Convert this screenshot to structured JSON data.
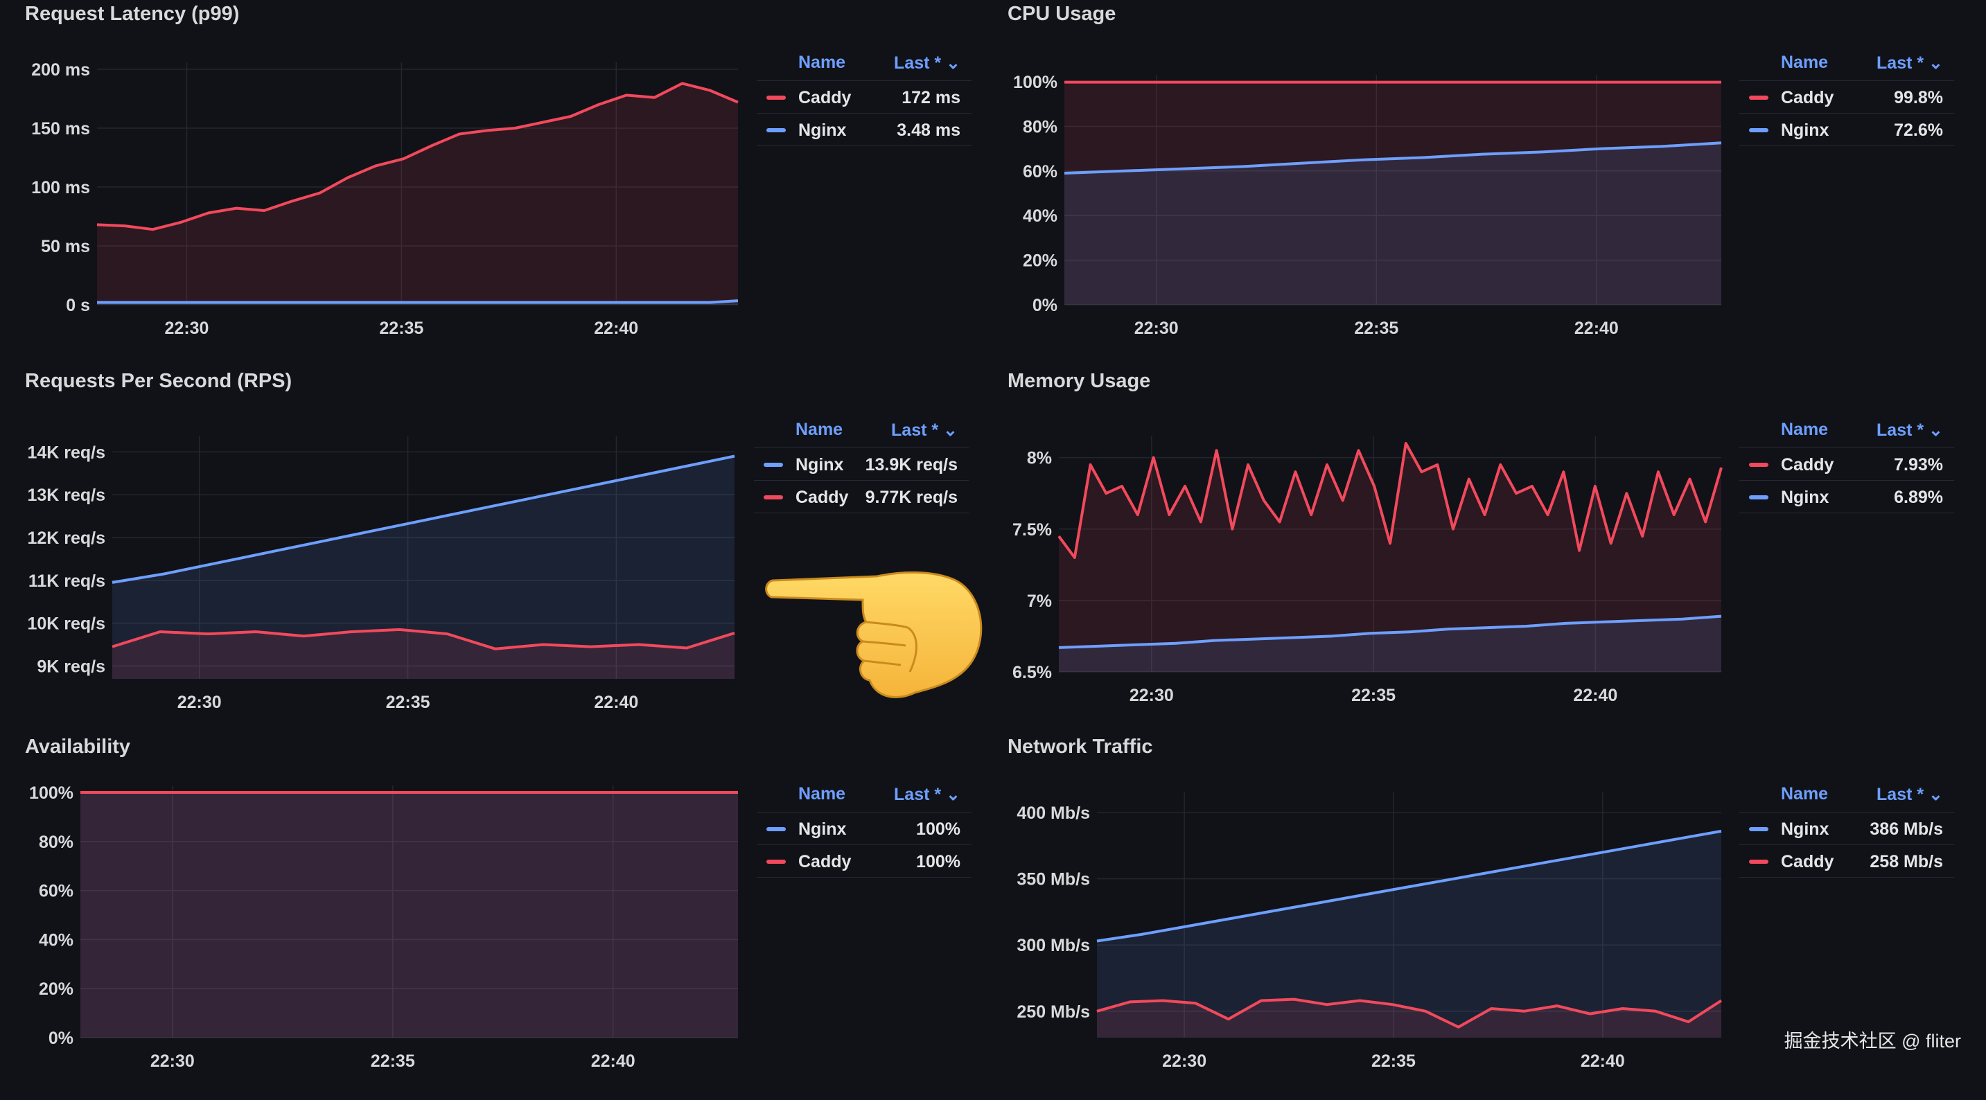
{
  "legend_header": {
    "name": "Name",
    "last": "Last *"
  },
  "colors": {
    "caddy": "#f2495c",
    "nginx": "#6e9fff",
    "grid": "#23262e"
  },
  "panels": [
    {
      "id": "latency",
      "title": "Request Latency (p99)",
      "legend": [
        {
          "name": "Caddy",
          "value": "172 ms",
          "color": "#f2495c"
        },
        {
          "name": "Nginx",
          "value": "3.48 ms",
          "color": "#6e9fff"
        }
      ]
    },
    {
      "id": "cpu",
      "title": "CPU Usage",
      "legend": [
        {
          "name": "Caddy",
          "value": "99.8%",
          "color": "#f2495c"
        },
        {
          "name": "Nginx",
          "value": "72.6%",
          "color": "#6e9fff"
        }
      ]
    },
    {
      "id": "rps",
      "title": "Requests Per Second (RPS)",
      "legend": [
        {
          "name": "Nginx",
          "value": "13.9K req/s",
          "color": "#6e9fff"
        },
        {
          "name": "Caddy",
          "value": "9.77K req/s",
          "color": "#f2495c"
        }
      ]
    },
    {
      "id": "memory",
      "title": "Memory Usage",
      "legend": [
        {
          "name": "Caddy",
          "value": "7.93%",
          "color": "#f2495c"
        },
        {
          "name": "Nginx",
          "value": "6.89%",
          "color": "#6e9fff"
        }
      ]
    },
    {
      "id": "availability",
      "title": "Availability",
      "legend": [
        {
          "name": "Nginx",
          "value": "100%",
          "color": "#6e9fff"
        },
        {
          "name": "Caddy",
          "value": "100%",
          "color": "#f2495c"
        }
      ]
    },
    {
      "id": "network",
      "title": "Network Traffic",
      "legend": [
        {
          "name": "Nginx",
          "value": "386 Mb/s",
          "color": "#6e9fff"
        },
        {
          "name": "Caddy",
          "value": "258 Mb/s",
          "color": "#f2495c"
        }
      ]
    }
  ],
  "chart_data": [
    {
      "type": "area",
      "title": "Request Latency (p99)",
      "ylim": [
        0,
        200
      ],
      "y_ticks": [
        "0 s",
        "50 ms",
        "100 ms",
        "150 ms",
        "200 ms"
      ],
      "x_ticks": [
        "22:30",
        "22:35",
        "22:40"
      ],
      "series": [
        {
          "name": "Caddy",
          "color": "#f2495c",
          "y": [
            68,
            67,
            64,
            70,
            78,
            82,
            80,
            88,
            95,
            108,
            118,
            124,
            135,
            145,
            148,
            150,
            155,
            160,
            170,
            178,
            176,
            188,
            182,
            172
          ]
        },
        {
          "name": "Nginx",
          "color": "#6e9fff",
          "y": [
            2,
            2,
            2,
            2,
            2,
            2,
            2,
            2,
            2,
            2,
            2,
            2,
            2,
            2,
            2,
            2,
            2,
            2,
            2,
            2,
            2,
            2,
            2,
            3.48
          ]
        }
      ]
    },
    {
      "type": "area",
      "title": "CPU Usage",
      "ylim": [
        0,
        100
      ],
      "y_ticks": [
        "0%",
        "20%",
        "40%",
        "60%",
        "80%",
        "100%"
      ],
      "x_ticks": [
        "22:30",
        "22:35",
        "22:40"
      ],
      "series": [
        {
          "name": "Caddy",
          "color": "#f2495c",
          "y": [
            99.8,
            99.8,
            99.8,
            99.8,
            99.8,
            99.8,
            99.8,
            99.8,
            99.8,
            99.8,
            99.8,
            99.8
          ]
        },
        {
          "name": "Nginx",
          "color": "#6e9fff",
          "y": [
            59,
            60,
            61,
            62,
            63.5,
            65,
            66,
            67.5,
            68.5,
            70,
            71,
            72.6
          ]
        }
      ]
    },
    {
      "type": "area",
      "title": "Requests Per Second (RPS)",
      "ylim": [
        8700,
        14200
      ],
      "y_ticks": [
        "9K req/s",
        "10K req/s",
        "11K req/s",
        "12K req/s",
        "13K req/s",
        "14K req/s"
      ],
      "x_ticks": [
        "22:30",
        "22:35",
        "22:40"
      ],
      "series": [
        {
          "name": "Nginx",
          "color": "#6e9fff",
          "y": [
            10950,
            11150,
            11400,
            11650,
            11900,
            12150,
            12400,
            12650,
            12900,
            13150,
            13400,
            13650,
            13900
          ]
        },
        {
          "name": "Caddy",
          "color": "#f2495c",
          "y": [
            9450,
            9800,
            9750,
            9800,
            9700,
            9800,
            9850,
            9750,
            9400,
            9500,
            9450,
            9500,
            9420,
            9770
          ]
        }
      ]
    },
    {
      "type": "area",
      "title": "Memory Usage",
      "ylim": [
        6.5,
        8.1
      ],
      "y_ticks": [
        "6.5%",
        "7%",
        "7.5%",
        "8%"
      ],
      "x_ticks": [
        "22:30",
        "22:35",
        "22:40"
      ],
      "series": [
        {
          "name": "Caddy",
          "color": "#f2495c",
          "y": [
            7.45,
            7.3,
            7.95,
            7.75,
            7.8,
            7.6,
            8.0,
            7.6,
            7.8,
            7.55,
            8.05,
            7.5,
            7.95,
            7.7,
            7.55,
            7.9,
            7.6,
            7.95,
            7.7,
            8.05,
            7.8,
            7.4,
            8.1,
            7.9,
            7.95,
            7.5,
            7.85,
            7.6,
            7.95,
            7.75,
            7.8,
            7.6,
            7.9,
            7.35,
            7.8,
            7.4,
            7.75,
            7.45,
            7.9,
            7.6,
            7.85,
            7.55,
            7.93
          ]
        },
        {
          "name": "Nginx",
          "color": "#6e9fff",
          "y": [
            6.67,
            6.68,
            6.69,
            6.7,
            6.72,
            6.73,
            6.74,
            6.75,
            6.77,
            6.78,
            6.8,
            6.81,
            6.82,
            6.84,
            6.85,
            6.86,
            6.87,
            6.89
          ]
        }
      ]
    },
    {
      "type": "area",
      "title": "Availability",
      "ylim": [
        0,
        100
      ],
      "y_ticks": [
        "0%",
        "20%",
        "40%",
        "60%",
        "80%",
        "100%"
      ],
      "x_ticks": [
        "22:30",
        "22:35",
        "22:40"
      ],
      "series": [
        {
          "name": "Nginx",
          "color": "#6e9fff",
          "y": [
            100,
            100,
            100,
            100,
            100,
            100,
            100,
            100,
            100,
            100
          ]
        },
        {
          "name": "Caddy",
          "color": "#f2495c",
          "y": [
            100,
            100,
            100,
            100,
            100,
            100,
            100,
            100,
            100,
            100
          ]
        }
      ]
    },
    {
      "type": "area",
      "title": "Network Traffic",
      "ylim": [
        230,
        410
      ],
      "y_ticks": [
        "250 Mb/s",
        "300 Mb/s",
        "350 Mb/s",
        "400 Mb/s"
      ],
      "x_ticks": [
        "22:30",
        "22:35",
        "22:40"
      ],
      "series": [
        {
          "name": "Nginx",
          "color": "#6e9fff",
          "y": [
            303,
            308,
            314,
            320,
            326,
            332,
            338,
            344,
            350,
            356,
            362,
            368,
            374,
            380,
            386
          ]
        },
        {
          "name": "Caddy",
          "color": "#f2495c",
          "y": [
            250,
            257,
            258,
            256,
            244,
            258,
            259,
            255,
            258,
            255,
            250,
            238,
            252,
            250,
            254,
            248,
            252,
            250,
            242,
            258
          ]
        }
      ]
    }
  ],
  "watermark": "掘金技术社区 @ fliter"
}
